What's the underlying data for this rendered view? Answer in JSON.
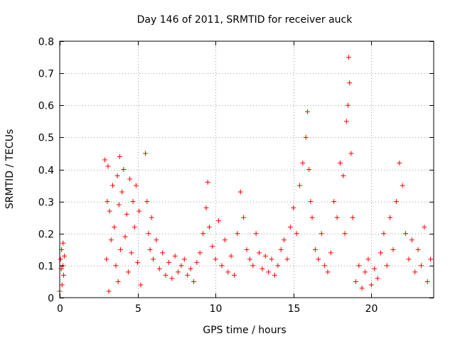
{
  "chart_data": {
    "type": "scatter",
    "title": "Day 146 of 2011, SRMTID for receiver auck",
    "xlabel": "GPS time / hours",
    "ylabel": "SRMTID / TECUs",
    "xlim": [
      0,
      24
    ],
    "ylim": [
      0,
      0.8
    ],
    "xticks": [
      0,
      5,
      10,
      15,
      20
    ],
    "xtick_labels": [
      "0",
      "5",
      "10",
      "15",
      "20"
    ],
    "yticks": [
      0,
      0.1,
      0.2,
      0.3,
      0.4,
      0.5,
      0.6,
      0.7,
      0.8
    ],
    "ytick_labels": [
      "0",
      "0.1",
      "0.2",
      "0.3",
      "0.4",
      "0.5",
      "0.6",
      "0.7",
      "0.8"
    ],
    "grid": true,
    "marker": "plus",
    "colors": {
      "series": "#ff0000",
      "axis": "#000000",
      "grid": "#a0a0a0"
    },
    "series": [
      {
        "name": "SRMTID",
        "color": "#ff0000",
        "x": [
          0.0,
          0.05,
          0.1,
          0.12,
          0.15,
          0.2,
          0.22,
          0.25,
          0.3,
          2.9,
          3.0,
          3.05,
          3.1,
          3.15,
          3.2,
          3.3,
          3.4,
          3.5,
          3.6,
          3.7,
          3.75,
          3.8,
          3.85,
          3.9,
          4.0,
          4.1,
          4.2,
          4.3,
          4.4,
          4.5,
          4.6,
          4.7,
          4.8,
          4.9,
          5.0,
          5.1,
          5.2,
          5.5,
          5.6,
          5.7,
          5.8,
          5.9,
          6.0,
          6.2,
          6.4,
          6.6,
          6.8,
          7.0,
          7.2,
          7.4,
          7.6,
          7.8,
          8.0,
          8.2,
          8.4,
          8.6,
          8.8,
          9.0,
          9.2,
          9.4,
          9.5,
          9.6,
          9.8,
          10.0,
          10.2,
          10.4,
          10.6,
          10.8,
          11.0,
          11.2,
          11.4,
          11.6,
          11.8,
          12.0,
          12.2,
          12.4,
          12.6,
          12.8,
          13.0,
          13.2,
          13.4,
          13.6,
          13.8,
          14.0,
          14.2,
          14.4,
          14.6,
          14.8,
          15.0,
          15.2,
          15.4,
          15.6,
          15.8,
          15.9,
          16.0,
          16.1,
          16.2,
          16.4,
          16.6,
          16.8,
          17.0,
          17.2,
          17.4,
          17.6,
          17.8,
          18.0,
          18.2,
          18.3,
          18.4,
          18.5,
          18.55,
          18.6,
          18.7,
          18.8,
          19.0,
          19.2,
          19.4,
          19.6,
          19.8,
          20.0,
          20.2,
          20.4,
          20.6,
          20.8,
          21.0,
          21.2,
          21.4,
          21.6,
          21.8,
          22.0,
          22.2,
          22.4,
          22.6,
          22.8,
          23.0,
          23.2,
          23.4,
          23.6,
          23.8
        ],
        "y": [
          0.02,
          0.12,
          0.09,
          0.15,
          0.04,
          0.1,
          0.17,
          0.07,
          0.13,
          0.43,
          0.12,
          0.3,
          0.41,
          0.02,
          0.27,
          0.18,
          0.35,
          0.22,
          0.1,
          0.38,
          0.05,
          0.29,
          0.44,
          0.15,
          0.33,
          0.4,
          0.19,
          0.26,
          0.08,
          0.37,
          0.14,
          0.3,
          0.22,
          0.35,
          0.11,
          0.27,
          0.04,
          0.45,
          0.3,
          0.2,
          0.15,
          0.25,
          0.12,
          0.18,
          0.09,
          0.14,
          0.07,
          0.11,
          0.06,
          0.13,
          0.08,
          0.1,
          0.12,
          0.07,
          0.09,
          0.05,
          0.11,
          0.14,
          0.2,
          0.28,
          0.36,
          0.22,
          0.16,
          0.12,
          0.24,
          0.1,
          0.18,
          0.08,
          0.13,
          0.07,
          0.2,
          0.33,
          0.25,
          0.15,
          0.12,
          0.1,
          0.2,
          0.14,
          0.09,
          0.13,
          0.08,
          0.12,
          0.07,
          0.1,
          0.15,
          0.18,
          0.12,
          0.22,
          0.28,
          0.2,
          0.35,
          0.42,
          0.5,
          0.58,
          0.4,
          0.3,
          0.25,
          0.15,
          0.12,
          0.2,
          0.1,
          0.08,
          0.14,
          0.3,
          0.25,
          0.42,
          0.38,
          0.2,
          0.55,
          0.6,
          0.75,
          0.67,
          0.45,
          0.25,
          0.05,
          0.1,
          0.03,
          0.08,
          0.12,
          0.04,
          0.09,
          0.06,
          0.14,
          0.2,
          0.1,
          0.25,
          0.15,
          0.3,
          0.42,
          0.35,
          0.2,
          0.12,
          0.18,
          0.08,
          0.15,
          0.1,
          0.22,
          0.05,
          0.12
        ]
      }
    ]
  }
}
